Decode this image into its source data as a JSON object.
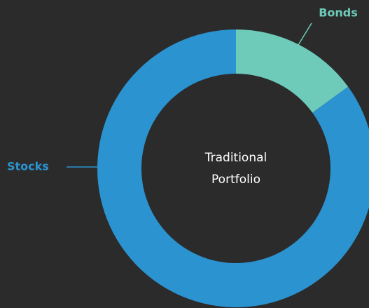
{
  "chart_data": {
    "type": "donut",
    "categories": [
      "Stocks",
      "Bonds"
    ],
    "values": [
      85,
      15
    ],
    "colors": [
      "#2b93cf",
      "#6ecbb9"
    ],
    "center_text": [
      "Traditional",
      "Portfolio"
    ]
  }
}
